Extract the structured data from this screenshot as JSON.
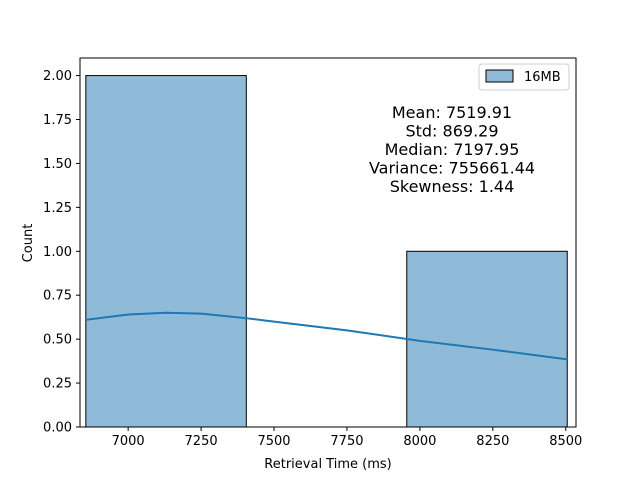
{
  "chart_data": {
    "type": "bar",
    "subtype": "histogram-with-kde",
    "title": "",
    "xlabel": "Retrieval Time (ms)",
    "ylabel": "Count",
    "xlim": [
      6835,
      8535
    ],
    "ylim": [
      0,
      2.1
    ],
    "x_ticks": [
      7000,
      7250,
      7500,
      7750,
      8000,
      8250,
      8500
    ],
    "y_ticks": [
      0.0,
      0.25,
      0.5,
      0.75,
      1.0,
      1.25,
      1.5,
      1.75,
      2.0
    ],
    "y_tick_labels": [
      "0.00",
      "0.25",
      "0.50",
      "0.75",
      "1.00",
      "1.25",
      "1.50",
      "1.75",
      "2.00"
    ],
    "series": [
      {
        "name": "16MB",
        "color": "#1f77b4",
        "fill": "#8fbbd9",
        "bins": [
          {
            "x0": 6855,
            "x1": 7405,
            "count": 2
          },
          {
            "x0": 7405,
            "x1": 7955,
            "count": 0
          },
          {
            "x0": 7955,
            "x1": 8505,
            "count": 1
          }
        ],
        "kde": {
          "x": [
            6855,
            7000,
            7130,
            7250,
            7400,
            7500,
            7750,
            8000,
            8250,
            8505
          ],
          "y": [
            0.61,
            0.64,
            0.65,
            0.645,
            0.62,
            0.6,
            0.55,
            0.49,
            0.44,
            0.385
          ]
        }
      }
    ],
    "legend": {
      "position": "top-right",
      "entries": [
        "16MB"
      ]
    },
    "annotation_lines": [
      "Mean: 7519.91",
      "Std: 869.29",
      "Median: 7197.95",
      "Variance: 755661.44",
      "Skewness: 1.44"
    ],
    "grid": false
  }
}
